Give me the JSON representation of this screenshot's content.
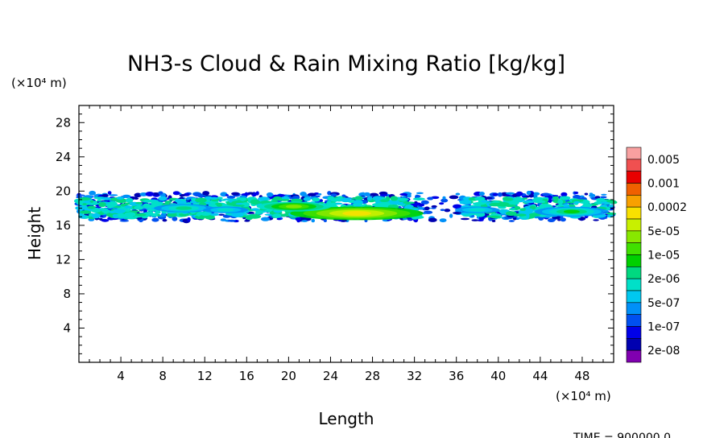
{
  "chart_data": {
    "type": "heatmap",
    "title": "NH3-s Cloud & Rain Mixing Ratio [kg/kg]",
    "xlabel": "Length",
    "ylabel": "Height",
    "x_unit": "(×10⁴ m)",
    "y_unit": "(×10⁴ m)",
    "xlim": [
      0,
      51
    ],
    "ylim": [
      0,
      30
    ],
    "x_ticks": [
      4,
      8,
      12,
      16,
      20,
      24,
      28,
      32,
      36,
      40,
      44,
      48
    ],
    "y_ticks": [
      4,
      8,
      12,
      16,
      20,
      24,
      28
    ],
    "colorbar": {
      "levels": [
        "0.005",
        "0.001",
        "0.0002",
        "5e-05",
        "1e-05",
        "2e-06",
        "5e-07",
        "1e-07",
        "2e-08"
      ],
      "colors": [
        "#f8a0a0",
        "#f05050",
        "#e80000",
        "#f06000",
        "#f8a000",
        "#f8e000",
        "#c8f000",
        "#88e800",
        "#40e000",
        "#00d000",
        "#00d880",
        "#00e0c8",
        "#00c8f0",
        "#0090f8",
        "#0050f0",
        "#0000e8",
        "#0000b0",
        "#8000b0"
      ]
    },
    "layer": {
      "base_km": 16.5,
      "top_km": 19.8,
      "features": [
        {
          "x": 10,
          "y": 18.0,
          "level": 7
        },
        {
          "x": 14,
          "y": 17.8,
          "level": 6
        },
        {
          "x": 20.5,
          "y": 18.2,
          "level": 10
        },
        {
          "x": 26.5,
          "y": 17.4,
          "level": 12
        },
        {
          "x": 38,
          "y": 17.8,
          "level": 6
        },
        {
          "x": 47,
          "y": 17.6,
          "level": 8
        }
      ]
    },
    "footer": "TIME = 900000.0"
  }
}
